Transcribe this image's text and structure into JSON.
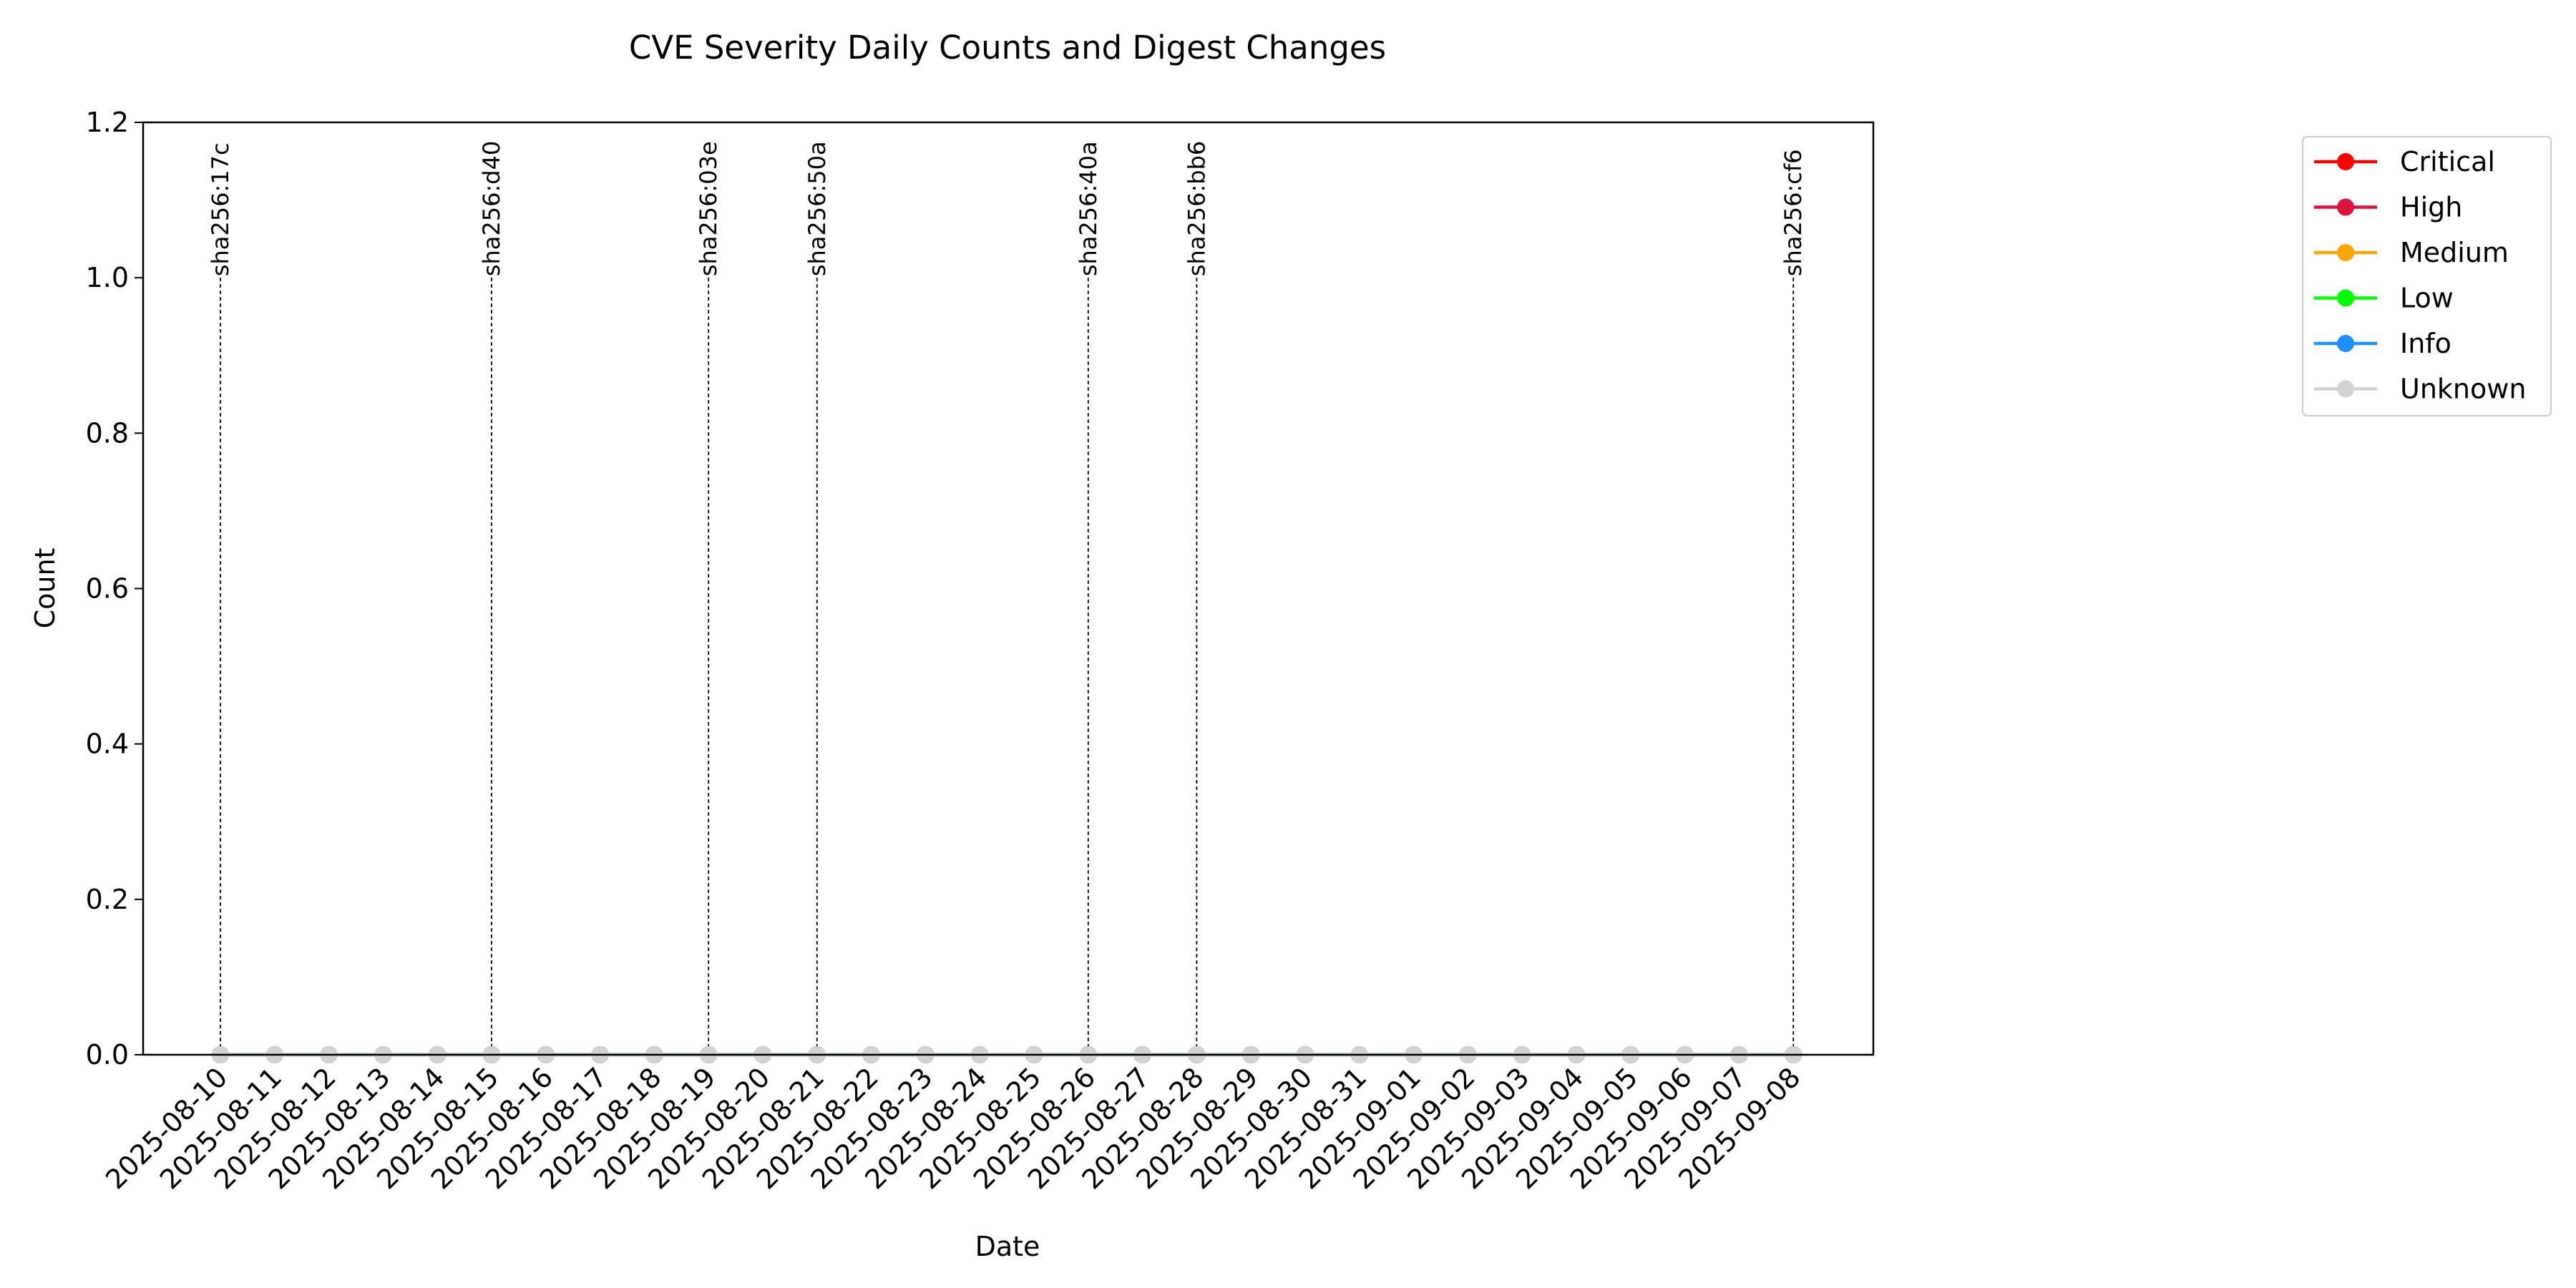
{
  "chart_data": {
    "type": "line",
    "title": "CVE Severity Daily Counts and Digest Changes",
    "xlabel": "Date",
    "ylabel": "Count",
    "ylim": [
      0,
      1.2
    ],
    "yticks": [
      "0.0",
      "0.2",
      "0.4",
      "0.6",
      "0.8",
      "1.0",
      "1.2"
    ],
    "x": [
      "2025-08-10",
      "2025-08-11",
      "2025-08-12",
      "2025-08-13",
      "2025-08-14",
      "2025-08-15",
      "2025-08-16",
      "2025-08-17",
      "2025-08-18",
      "2025-08-19",
      "2025-08-20",
      "2025-08-21",
      "2025-08-22",
      "2025-08-23",
      "2025-08-24",
      "2025-08-25",
      "2025-08-26",
      "2025-08-27",
      "2025-08-28",
      "2025-08-29",
      "2025-08-30",
      "2025-08-31",
      "2025-09-01",
      "2025-09-02",
      "2025-09-03",
      "2025-09-04",
      "2025-09-05",
      "2025-09-06",
      "2025-09-07",
      "2025-09-08"
    ],
    "series": [
      {
        "name": "Critical",
        "color": "#ff0000",
        "values": [
          0,
          0,
          0,
          0,
          0,
          0,
          0,
          0,
          0,
          0,
          0,
          0,
          0,
          0,
          0,
          0,
          0,
          0,
          0,
          0,
          0,
          0,
          0,
          0,
          0,
          0,
          0,
          0,
          0,
          0
        ]
      },
      {
        "name": "High",
        "color": "#dc143c",
        "values": [
          0,
          0,
          0,
          0,
          0,
          0,
          0,
          0,
          0,
          0,
          0,
          0,
          0,
          0,
          0,
          0,
          0,
          0,
          0,
          0,
          0,
          0,
          0,
          0,
          0,
          0,
          0,
          0,
          0,
          0
        ]
      },
      {
        "name": "Medium",
        "color": "#ffa500",
        "values": [
          0,
          0,
          0,
          0,
          0,
          0,
          0,
          0,
          0,
          0,
          0,
          0,
          0,
          0,
          0,
          0,
          0,
          0,
          0,
          0,
          0,
          0,
          0,
          0,
          0,
          0,
          0,
          0,
          0,
          0
        ]
      },
      {
        "name": "Low",
        "color": "#00ff00",
        "values": [
          0,
          0,
          0,
          0,
          0,
          0,
          0,
          0,
          0,
          0,
          0,
          0,
          0,
          0,
          0,
          0,
          0,
          0,
          0,
          0,
          0,
          0,
          0,
          0,
          0,
          0,
          0,
          0,
          0,
          0
        ]
      },
      {
        "name": "Info",
        "color": "#1e90ff",
        "values": [
          0,
          0,
          0,
          0,
          0,
          0,
          0,
          0,
          0,
          0,
          0,
          0,
          0,
          0,
          0,
          0,
          0,
          0,
          0,
          0,
          0,
          0,
          0,
          0,
          0,
          0,
          0,
          0,
          0,
          0
        ]
      },
      {
        "name": "Unknown",
        "color": "#d3d3d3",
        "values": [
          0,
          0,
          0,
          0,
          0,
          0,
          0,
          0,
          0,
          0,
          0,
          0,
          0,
          0,
          0,
          0,
          0,
          0,
          0,
          0,
          0,
          0,
          0,
          0,
          0,
          0,
          0,
          0,
          0,
          0
        ]
      }
    ],
    "digest_changes": [
      {
        "date": "2025-08-10",
        "label": "sha256:17c"
      },
      {
        "date": "2025-08-15",
        "label": "sha256:d40"
      },
      {
        "date": "2025-08-19",
        "label": "sha256:03e"
      },
      {
        "date": "2025-08-21",
        "label": "sha256:50a"
      },
      {
        "date": "2025-08-26",
        "label": "sha256:40a"
      },
      {
        "date": "2025-08-28",
        "label": "sha256:bb6"
      },
      {
        "date": "2025-09-08",
        "label": "sha256:cf6"
      }
    ],
    "legend_position": "outside-right-top",
    "grid": false
  }
}
